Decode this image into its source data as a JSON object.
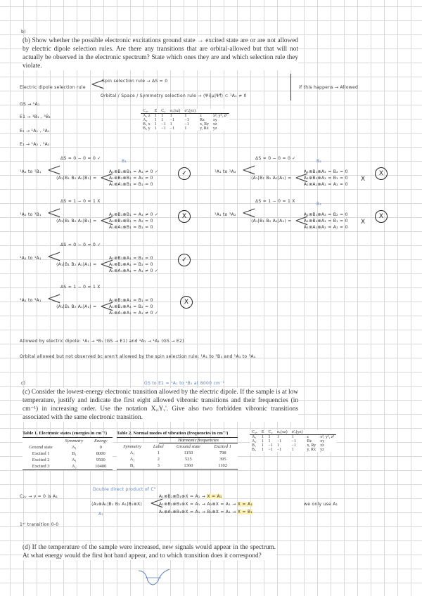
{
  "part_b": {
    "label": "b)",
    "question": "(b) Show whether the possible electronic excitations ground state → excited state are or are not allowed by electric dipole selection rules. Are there any transitions that are orbital-allowed but that will not actually be observed in the electronic spectrum? State which ones they are and which selection rule they violate.",
    "rule_label": "Electric dipole selection rule",
    "spin_rule": "Spin selection rule → ΔS = 0",
    "orbital_rule": "Orbital / Space / Symmetry selection rule → ⟨Ψi|μ|Ψf⟩ ⊂ ¹A₁ ≠ 0",
    "if_happens": "if this happens → Allowed",
    "states": [
      "GS → ¹A₁",
      "E1 → ¹B₁ , ³B₁",
      "E₂ → ¹A₁ , ³A₁",
      "E₃ → ¹A₂ , ³A₂"
    ],
    "char_table": {
      "header": [
        "C₂ᵥ",
        "E",
        "C₂",
        "σᵥ(xz)",
        "σ'ᵥ(yz)",
        "",
        ""
      ],
      "rows": [
        [
          "A₁ z",
          "1",
          "1",
          "1",
          "1",
          "z",
          "x², y², z²"
        ],
        [
          "A₂",
          "1",
          "1",
          "−1",
          "−1",
          "Rz",
          "xy"
        ],
        [
          "B₁ x",
          "1",
          "−1",
          "1",
          "−1",
          "x, Ry",
          "xz"
        ],
        [
          "B₂ y",
          "1",
          "−1",
          "−1",
          "1",
          "y, Rx",
          "yz"
        ]
      ]
    },
    "transitions": [
      {
        "label": "¹A₁ to ¹B₁",
        "spin": "ΔS = 0 − 0 = 0 ✓",
        "ket": "⟨A₁|B₁ B₂ A₁|B₁⟩ =",
        "results": [
          "A₁⊗B₁⊗B₁ = A₁ ≠ 0 ✓",
          "A₁⊗B₂⊗B₁ = A₂ = 0",
          "A₁⊗A₁⊗B₁ = B₁ = 0"
        ],
        "note": "B₁",
        "verdict": "✓",
        "ok": true
      },
      {
        "label": "¹A₁ to ¹A₂",
        "spin": "ΔS = 0 − 0 = 0 ✓",
        "ket": "⟨A₁|B₁ B₂ A₁|A₂⟩ =",
        "results": [
          "A₁⊗B₁⊗A₂ = B₂ = 0",
          "A₁⊗B₂⊗A₂ = B₁ = 0",
          "A₁⊗A₁⊗A₂ = A₂ = 0"
        ],
        "note": "B₂",
        "mark": "X",
        "verdict": "X",
        "ok": false
      },
      {
        "label": "¹A₁ to ³B₁",
        "spin": "ΔS = 1 − 0 = 1 X",
        "ket": "⟨A₁|B₁ B₂ A₁|B₁⟩ =",
        "results": [
          "A₁⊗B₁⊗B₁ = A₁ ≠ 0 ✓",
          "A₁⊗B₂⊗B₁ = A₂ = 0",
          "A₁⊗A₁⊗B₁ = B₁ = 0"
        ],
        "verdict": "X",
        "ok": false
      },
      {
        "label": "¹A₁ to ³A₂",
        "spin": "ΔS = 1 − 0 = 1 X",
        "ket": "⟨A₁|B₁ B₂ A₁|A₂⟩ =",
        "results": [
          "A₁⊗B₁⊗A₂ = B₂ = 0",
          "A₁⊗B₂⊗A₂ = B₁ = 0",
          "A₁⊗A₁⊗A₂ = A₂ = 0"
        ],
        "note": "B₂",
        "mark": "X",
        "verdict": "X",
        "ok": false
      },
      {
        "label": "¹A₁ to ¹A₁",
        "spin": "ΔS = 0 − 0 = 0 ✓",
        "ket": "⟨A₁|B₁ B₂ A₁|A₁⟩ =",
        "results": [
          "A₁⊗B₁⊗A₁ = B₁ = 0",
          "A₁⊗B₂⊗A₁ = B₂ = 0",
          "A₁⊗A₁⊗A₁ = A₁ ≠ 0 ✓"
        ],
        "verdict": "✓",
        "ok": true
      },
      {
        "label": "¹A₁ to ³A₁",
        "spin": "ΔS = 1 − 0 = 1 X",
        "ket": "⟨A₁|B₁ B₂ A₁|A₁⟩ =",
        "results": [
          "A₁⊗B₁⊗A₁ = B₁ = 0",
          "A₁⊗B₂⊗A₁ = B₂ = 0",
          "A₁⊗A₁⊗A₁ = A₁ ≠ 0 ✓"
        ],
        "verdict": "X",
        "ok": false
      }
    ],
    "allowed": "Allowed by electric dipole: ¹A₁ → ¹B₁ (GS → E1) and ¹A₁ → ¹A₁ (GS → E2)",
    "orbital_not_observed": "Orbital allowed but not observed bc aren't allowed by the spin selection rule: ¹A₁ to ³B₁ and ¹A₁ to ³A₁"
  },
  "part_c": {
    "label": "c)",
    "annotation": "GS to E1 = ¹A₁ to ¹B₁ at 8000 cm⁻¹",
    "question": "(c) Consider the lowest-energy electronic transition allowed by the electric dipole. If the sample is at low temperature, justify and indicate the first eight allowed vibronic transitions and their frequencies (in cm⁻¹) in increasing order. Use the notation XᵥᵢYᵥ'. Give also two forbidden vibronic transitions associated with the same electronic transition.",
    "table1": {
      "title": "Table 1. Electronic states (energies in cm⁻¹)",
      "headers": [
        "",
        "Symmetry",
        "Energy"
      ],
      "rows": [
        [
          "Ground state",
          "A₁",
          "0"
        ],
        [
          "Excited 1",
          "B₁",
          "8000"
        ],
        [
          "Excited 2",
          "A₁",
          "9500"
        ],
        [
          "Excited 3",
          "A₂",
          "10400"
        ]
      ]
    },
    "table2": {
      "title": "Table 2. Normal modes of vibration (frequencies in cm⁻¹)",
      "group": "Harmonic frequencies",
      "headers": [
        "Symmetry",
        "Label",
        "Ground state",
        "Excited 1"
      ],
      "rows": [
        [
          "A₁",
          "1",
          "1150",
          "798"
        ],
        [
          "A₁",
          "2",
          "525",
          "395"
        ],
        [
          "B₂",
          "3",
          "1360",
          "1102"
        ]
      ]
    },
    "char_table": {
      "header": [
        "C₂ᵥ",
        "E",
        "C₂",
        "σᵥ(xz)",
        "σ'ᵥ(yz)",
        "",
        ""
      ],
      "rows": [
        [
          "A₁",
          "1",
          "1",
          "1",
          "1",
          "z",
          "x², y², z²"
        ],
        [
          "A₂",
          "1",
          "1",
          "−1",
          "−1",
          "Rz",
          "xy"
        ],
        [
          "B₁",
          "1",
          "−1",
          "1",
          "−1",
          "x, Ry",
          "xz"
        ],
        [
          "B₂",
          "1",
          "−1",
          "−1",
          "1",
          "y, Rx",
          "yz"
        ]
      ]
    },
    "c2v_note": "C₂ᵥ → ν = 0 is A₁",
    "cross_note": "Double direct product of C²",
    "a1_note": "A₁",
    "ket": "⟨A₁⊗A₁|B₁ B₂ A₁|B₁⊗X⟩",
    "results": [
      [
        "A₁⊗B₁⊗B₁⊗X = A₁ →",
        "X = A₁"
      ],
      [
        "A₁⊗B₂⊗B₁⊗X = A₁ → A₂⊗X = A₁ →",
        "X = A₂"
      ],
      [
        "A₁⊗A₁⊗B₁⊗X = A₁ → B₁⊗X = A₁ →",
        "X = B₁"
      ]
    ],
    "only_use": "we only use A₁",
    "first_transition": "1ˢᵗ transition 0-0"
  },
  "part_d": {
    "question": "(d) If the temperature of the sample were increased, new signals would appear in the spectrum. At what energy would the first hot band appear, and to which transition does it correspond?"
  },
  "colors": {
    "ink": "#222222",
    "annotation": "#5b7fc4",
    "highlight": "#fff2b3",
    "grid": "#d9d9d9"
  }
}
